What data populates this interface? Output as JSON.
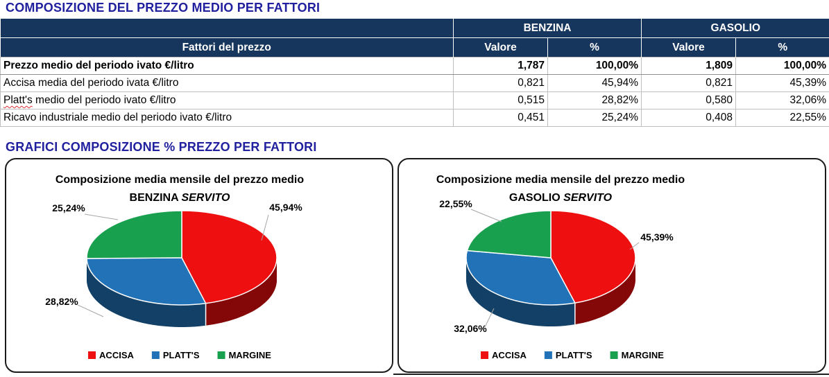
{
  "colors": {
    "heading": "#21219F",
    "table_header_bg": "#17365D",
    "table_header_text": "#FFFFFF",
    "gasolio_highlight": "#FDFD9F",
    "grid_line": "#BFBFBF",
    "leader_line": "#A6A6A6",
    "accisa_red": "#EE0F10",
    "platts_blue": "#2272B8",
    "margine_green": "#19A04F"
  },
  "section1": {
    "title": "COMPOSIZIONE DEL PREZZO MEDIO PER FATTORI"
  },
  "table": {
    "groups": [
      "BENZINA",
      "GASOLIO"
    ],
    "row_header": "Fattori del prezzo",
    "col_headers": [
      "Valore",
      "%",
      "Valore",
      "%"
    ],
    "rows": [
      {
        "label": "Prezzo medio del periodo ivato €/litro",
        "bold": true,
        "values": [
          "1,787",
          "100,00%",
          "1,809",
          "100,00%"
        ]
      },
      {
        "label": "Accisa media del periodo ivata €/litro",
        "values": [
          "0,821",
          "45,94%",
          "0,821",
          "45,39%"
        ]
      },
      {
        "label": "Platt's medio del periodo ivato €/litro",
        "label_head": "Platt's",
        "label_tail": " medio del periodo ivato €/litro",
        "misspelled": true,
        "values": [
          "0,515",
          "28,82%",
          "0,580",
          "32,06%"
        ]
      },
      {
        "label": "Ricavo industriale medio del periodo ivato €/litro",
        "values": [
          "0,451",
          "25,24%",
          "0,408",
          "22,55%"
        ]
      }
    ]
  },
  "section2": {
    "title": "GRAFICI COMPOSIZIONE % PREZZO PER FATTORI"
  },
  "chart_data": [
    {
      "type": "pie",
      "style": "3d",
      "title": "Composizione media mensile del prezzo medio",
      "subtitle_regular": "BENZINA",
      "subtitle_italic": "SERVITO",
      "labels": [
        "ACCISA",
        "PLATT'S",
        "MARGINE"
      ],
      "values": [
        45.94,
        28.82,
        25.24
      ],
      "value_labels": [
        "45,94%",
        "28,82%",
        "25,24%"
      ],
      "colors": [
        "#EE0F10",
        "#2272B8",
        "#19A04F"
      ],
      "legend_position": "bottom"
    },
    {
      "type": "pie",
      "style": "3d",
      "title": "Composizione media mensile del prezzo medio",
      "subtitle_regular": "GASOLIO",
      "subtitle_italic": "SERVITO",
      "labels": [
        "ACCISA",
        "PLATT'S",
        "MARGINE"
      ],
      "values": [
        45.39,
        32.06,
        22.55
      ],
      "value_labels": [
        "45,39%",
        "32,06%",
        "22,55%"
      ],
      "colors": [
        "#EE0F10",
        "#2272B8",
        "#19A04F"
      ],
      "legend_position": "bottom"
    }
  ]
}
